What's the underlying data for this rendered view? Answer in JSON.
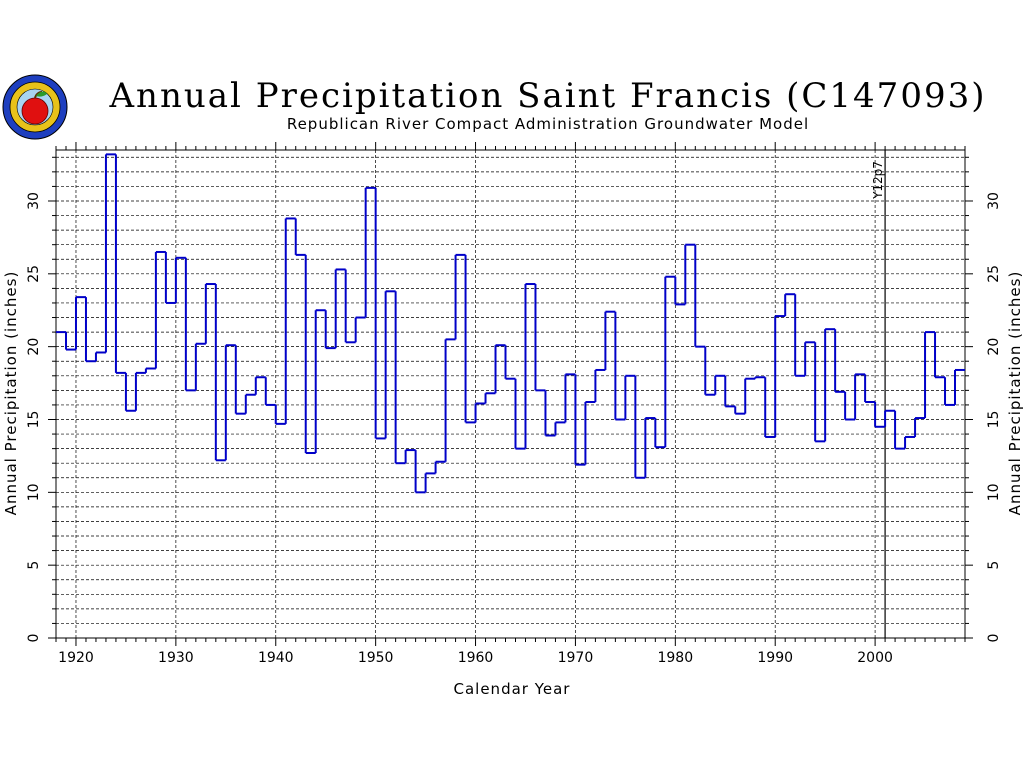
{
  "logo": {
    "name": "apple-seal-logo"
  },
  "colors": {
    "series_line": "#0000c8",
    "grid": "#000000",
    "axis": "#000000",
    "background": "#ffffff"
  },
  "chart_data": {
    "type": "line",
    "style": "step",
    "title": "Annual Precipitation Saint Francis (C147093)",
    "subtitle": "Republican River Compact Administration Groundwater Model",
    "xlabel": "Calendar Year",
    "ylabel_left": "Annual Precipitation (inches)",
    "ylabel_right": "Annual Precipitation (inches)",
    "xlim": [
      1918,
      2009
    ],
    "ylim": [
      0,
      33.5
    ],
    "x_ticks": [
      1920,
      1930,
      1940,
      1950,
      1960,
      1970,
      1980,
      1990,
      2000
    ],
    "y_ticks": [
      0,
      5,
      10,
      15,
      20,
      25,
      30
    ],
    "grid": true,
    "vertical_marker": {
      "x": 2001,
      "label": "Y12p7"
    },
    "x": [
      1918,
      1919,
      1920,
      1921,
      1922,
      1923,
      1924,
      1925,
      1926,
      1927,
      1928,
      1929,
      1930,
      1931,
      1932,
      1933,
      1934,
      1935,
      1936,
      1937,
      1938,
      1939,
      1940,
      1941,
      1942,
      1943,
      1944,
      1945,
      1946,
      1947,
      1948,
      1949,
      1950,
      1951,
      1952,
      1953,
      1954,
      1955,
      1956,
      1957,
      1958,
      1959,
      1960,
      1961,
      1962,
      1963,
      1964,
      1965,
      1966,
      1967,
      1968,
      1969,
      1970,
      1971,
      1972,
      1973,
      1974,
      1975,
      1976,
      1977,
      1978,
      1979,
      1980,
      1981,
      1982,
      1983,
      1984,
      1985,
      1986,
      1987,
      1988,
      1989,
      1990,
      1991,
      1992,
      1993,
      1994,
      1995,
      1996,
      1997,
      1998,
      1999,
      2000,
      2001,
      2002,
      2003,
      2004,
      2005,
      2006,
      2007,
      2008
    ],
    "values": [
      21.0,
      19.8,
      23.4,
      19.0,
      19.6,
      33.2,
      18.2,
      15.6,
      18.2,
      18.5,
      26.5,
      23.0,
      26.1,
      17.0,
      20.2,
      24.3,
      12.2,
      20.1,
      15.4,
      16.7,
      17.9,
      16.0,
      14.7,
      28.8,
      26.3,
      12.7,
      22.5,
      19.9,
      25.3,
      20.3,
      22.0,
      30.9,
      13.7,
      23.8,
      12.0,
      12.9,
      10.0,
      11.3,
      12.1,
      20.5,
      26.3,
      14.8,
      16.1,
      16.8,
      20.1,
      17.8,
      13.0,
      24.3,
      17.0,
      13.9,
      14.8,
      18.1,
      11.9,
      16.2,
      18.4,
      22.4,
      15.0,
      18.0,
      11.0,
      15.1,
      13.1,
      24.8,
      22.9,
      27.0,
      20.0,
      16.7,
      18.0,
      15.9,
      15.4,
      17.8,
      17.9,
      13.8,
      22.1,
      23.6,
      18.0,
      20.3,
      13.5,
      21.2,
      16.9,
      15.0,
      18.1,
      16.2,
      14.5,
      15.6,
      13.0,
      13.8,
      15.1,
      21.0,
      17.9,
      16.0,
      18.4
    ]
  }
}
